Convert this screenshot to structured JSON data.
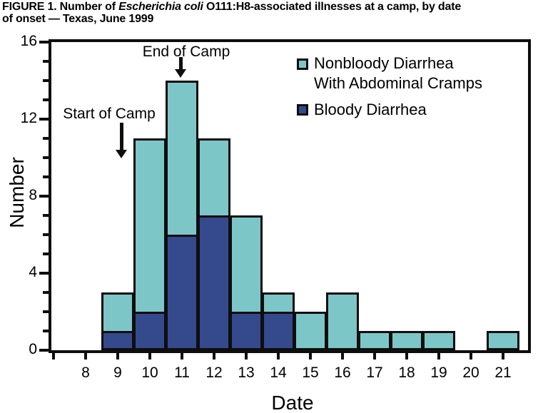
{
  "figure": {
    "title_line1_prefix": "FIGURE 1. Number of ",
    "title_line1_italic": "Escherichia coli",
    "title_line1_suffix": " O111:H8-associated illnesses at a camp, by date",
    "title_line2": "of onset — Texas, June 1999"
  },
  "chart_data": {
    "type": "bar",
    "stacked": true,
    "title": "FIGURE 1. Number of Escherichia coli O111:H8-associated illnesses at a camp, by date of onset — Texas, June 1999",
    "xlabel": "Date",
    "ylabel": "Number",
    "x": [
      8,
      9,
      10,
      11,
      12,
      13,
      14,
      15,
      16,
      17,
      18,
      19,
      20,
      21
    ],
    "series": [
      {
        "name": "Bloody Diarrhea",
        "color": "#35498D",
        "values": [
          0,
          1,
          2,
          6,
          7,
          2,
          2,
          0,
          0,
          0,
          0,
          0,
          0,
          0
        ]
      },
      {
        "name": "Nonbloody Diarrhea With Abdominal Cramps",
        "legend_lines": [
          "Nonbloody Diarrhea",
          "With Abdominal Cramps"
        ],
        "color": "#7DC6C8",
        "values": [
          0,
          2,
          9,
          8,
          4,
          5,
          1,
          2,
          3,
          1,
          1,
          1,
          0,
          1
        ]
      }
    ],
    "totals": [
      0,
      3,
      11,
      14,
      11,
      7,
      3,
      2,
      3,
      1,
      1,
      1,
      0,
      1
    ],
    "ylim": [
      0,
      16
    ],
    "yticks_major": [
      0,
      4,
      8,
      12,
      16
    ],
    "ytick_minor_step": 1,
    "grid": false,
    "legend_position": "top-right-inside",
    "annotations": [
      {
        "label": "Start of Camp",
        "x": 9
      },
      {
        "label": "End of Camp",
        "x": 11
      }
    ]
  },
  "colors": {
    "nonbloody": "#7DC6C8",
    "bloody": "#35498D",
    "ink": "#0E0E0E",
    "background": "#FFFFFF"
  }
}
